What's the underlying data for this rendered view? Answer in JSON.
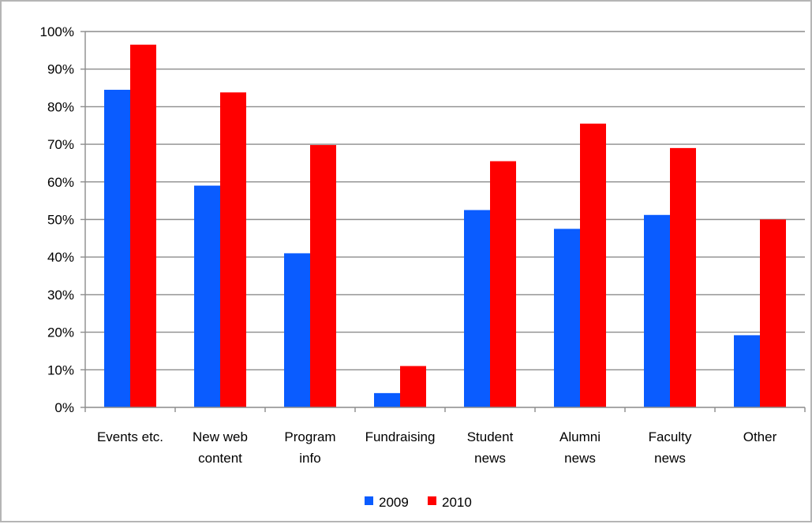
{
  "chart_data": {
    "type": "bar",
    "categories": [
      [
        "Events etc."
      ],
      [
        "New web",
        "content"
      ],
      [
        "Program",
        "info"
      ],
      [
        "Fundraising"
      ],
      [
        "Student",
        "news"
      ],
      [
        "Alumni",
        "news"
      ],
      [
        "Faculty",
        "news"
      ],
      [
        "Other"
      ]
    ],
    "series": [
      {
        "name": "2009",
        "color": "#0a5cff",
        "values": [
          84.5,
          59.0,
          41.0,
          3.8,
          52.5,
          47.5,
          51.2,
          19.2
        ]
      },
      {
        "name": "2010",
        "color": "#ff0000",
        "values": [
          96.5,
          83.8,
          69.8,
          11.0,
          65.5,
          75.5,
          69.0,
          50.0
        ]
      }
    ],
    "ylim": [
      0,
      100
    ],
    "yticks": [
      0,
      10,
      20,
      30,
      40,
      50,
      60,
      70,
      80,
      90,
      100
    ],
    "ytick_suffix": "%",
    "grid": true,
    "legend_position": "bottom",
    "title": "",
    "xlabel": "",
    "ylabel": ""
  }
}
